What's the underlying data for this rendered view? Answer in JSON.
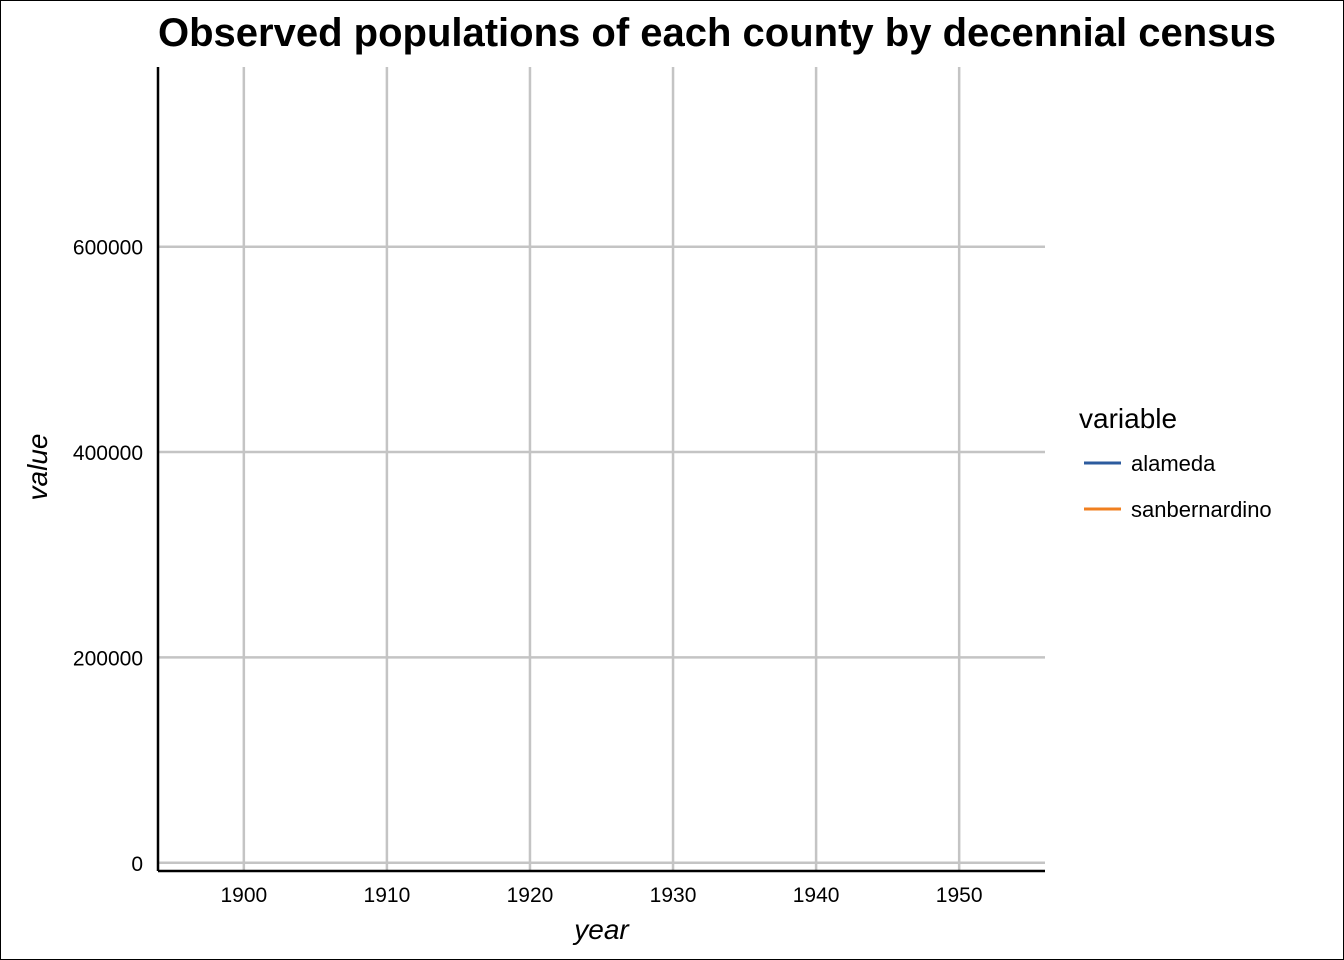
{
  "chart_data": {
    "type": "line",
    "title": "Observed populations of each county by decennial census",
    "xlabel": "year",
    "ylabel": "value",
    "xlim": [
      1894,
      1956
    ],
    "ylim": [
      -8000,
      775000
    ],
    "x_ticks": [
      1900,
      1910,
      1920,
      1930,
      1940,
      1950
    ],
    "y_ticks": [
      0,
      200000,
      400000,
      600000
    ],
    "grid": true,
    "legend": {
      "title": "variable",
      "position": "right"
    },
    "series": [
      {
        "name": "alameda",
        "color": "#2c5b9e",
        "x": [],
        "values": []
      },
      {
        "name": "sanbernardino",
        "color": "#f07f1f",
        "x": [],
        "values": []
      }
    ]
  }
}
